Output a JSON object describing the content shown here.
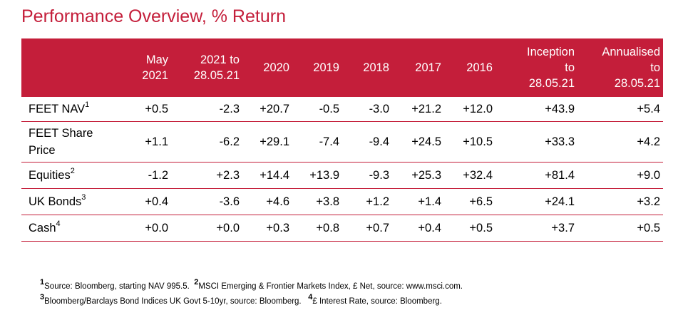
{
  "title": "Performance Overview, % Return",
  "table": {
    "headers": [
      {
        "line1": "May",
        "line2": "2021"
      },
      {
        "line1": "2021 to",
        "line2": "28.05.21"
      },
      {
        "line1": "2020",
        "line2": ""
      },
      {
        "line1": "2019",
        "line2": ""
      },
      {
        "line1": "2018",
        "line2": ""
      },
      {
        "line1": "2017",
        "line2": ""
      },
      {
        "line1": "2016",
        "line2": ""
      },
      {
        "line1": "Inception",
        "line2": "to",
        "line3": "28.05.21"
      },
      {
        "line1": "Annualised",
        "line2": "to",
        "line3": "28.05.21"
      }
    ],
    "rows": [
      {
        "label_line1": "FEET NAV",
        "label_line2": "",
        "sup": "1",
        "values": [
          "+0.5",
          "-2.3",
          "+20.7",
          "-0.5",
          "-3.0",
          "+21.2",
          "+12.0",
          "+43.9",
          "+5.4"
        ]
      },
      {
        "label_line1": "FEET Share",
        "label_line2": "Price",
        "sup": "",
        "values": [
          "+1.1",
          "-6.2",
          "+29.1",
          "-7.4",
          "-9.4",
          "+24.5",
          "+10.5",
          "+33.3",
          "+4.2"
        ]
      },
      {
        "label_line1": "Equities",
        "label_line2": "",
        "sup": "2",
        "values": [
          "-1.2",
          "+2.3",
          "+14.4",
          "+13.9",
          "-9.3",
          "+25.3",
          "+32.4",
          "+81.4",
          "+9.0"
        ]
      },
      {
        "label_line1": "UK Bonds",
        "label_line2": "",
        "sup": "3",
        "values": [
          "+0.4",
          "-3.6",
          "+4.6",
          "+3.8",
          "+1.2",
          "+1.4",
          "+6.5",
          "+24.1",
          "+3.2"
        ]
      },
      {
        "label_line1": "Cash",
        "label_line2": "",
        "sup": "4",
        "values": [
          "+0.0",
          "+0.0",
          "+0.3",
          "+0.8",
          "+0.7",
          "+0.4",
          "+0.5",
          "+3.7",
          "+0.5"
        ]
      }
    ]
  },
  "footnotes": {
    "f1_num": "1",
    "f1_text": "Source: Bloomberg, starting NAV 995.5.",
    "f2_num": "2",
    "f2_text": "MSCI Emerging & Frontier Markets Index, £ Net, source: www.msci.com.",
    "f3_num": "3",
    "f3_text": "Bloomberg/Barclays Bond Indices UK Govt 5-10yr, source: Bloomberg.",
    "f4_num": "4",
    "f4_text": "£ Interest Rate, source: Bloomberg."
  },
  "colors": {
    "accent": "#c41e3a",
    "header_text": "#ffffff"
  }
}
